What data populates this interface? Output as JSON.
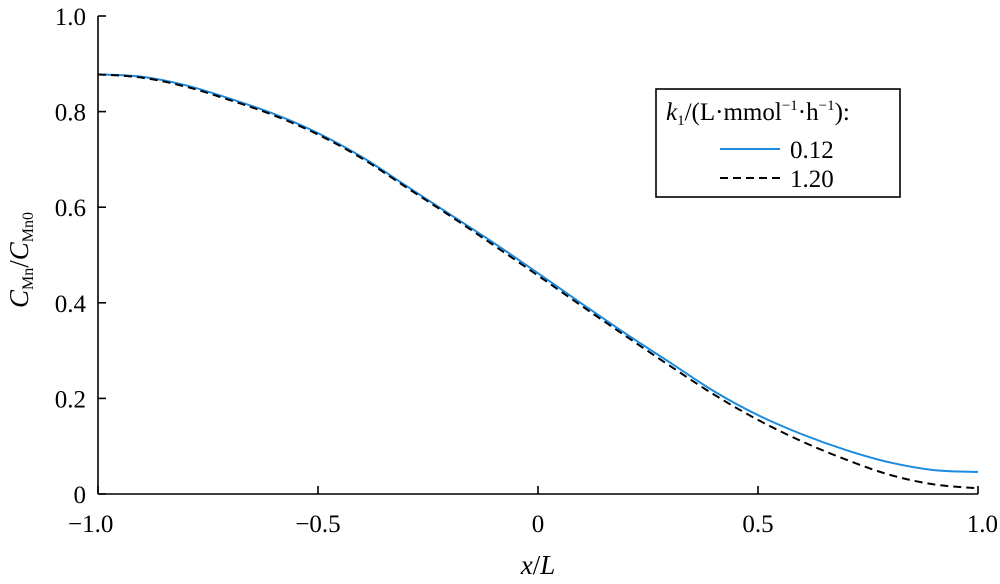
{
  "chart_data": {
    "type": "line",
    "xlabel": {
      "var": "x",
      "sep": "/",
      "ref": "L"
    },
    "ylabel": {
      "num": "C",
      "num_sub": "Mn",
      "sep": "/",
      "den": "C",
      "den_sub": "Mn0"
    },
    "xlim": [
      -1.0,
      1.0
    ],
    "ylim": [
      0,
      1.0
    ],
    "x_ticks": [
      -1.0,
      -0.5,
      0,
      0.5,
      1.0
    ],
    "x_tick_labels": [
      "−1.0",
      "−0.5",
      "0",
      "0.5",
      "1.0"
    ],
    "y_ticks": [
      0,
      0.2,
      0.4,
      0.6,
      0.8,
      1.0
    ],
    "y_tick_labels": [
      "0",
      "0.2",
      "0.4",
      "0.6",
      "0.8",
      "1.0"
    ],
    "grid": false,
    "legend": {
      "position": "top-right",
      "title": {
        "k": "k",
        "sub": "1",
        "rest": "/(L·mmol",
        "sup1": "−1",
        "mid": "·h",
        "sup2": "−1",
        "end": "):"
      }
    },
    "series": [
      {
        "name": "0.12",
        "color": "#1a8be0",
        "style": "solid",
        "x": [
          -1.0,
          -0.9,
          -0.8,
          -0.7,
          -0.6,
          -0.5,
          -0.4,
          -0.3,
          -0.2,
          -0.1,
          0.0,
          0.1,
          0.2,
          0.3,
          0.4,
          0.5,
          0.6,
          0.7,
          0.8,
          0.9,
          1.0
        ],
        "y": [
          0.878,
          0.873,
          0.855,
          0.827,
          0.795,
          0.755,
          0.705,
          0.645,
          0.585,
          0.525,
          0.462,
          0.398,
          0.335,
          0.275,
          0.215,
          0.165,
          0.125,
          0.092,
          0.066,
          0.05,
          0.046
        ]
      },
      {
        "name": "1.20",
        "color": "#000000",
        "style": "dashed",
        "x": [
          -1.0,
          -0.9,
          -0.8,
          -0.7,
          -0.6,
          -0.5,
          -0.4,
          -0.3,
          -0.2,
          -0.1,
          0.0,
          0.1,
          0.2,
          0.3,
          0.4,
          0.5,
          0.6,
          0.7,
          0.8,
          0.9,
          1.0
        ],
        "y": [
          0.878,
          0.871,
          0.852,
          0.824,
          0.792,
          0.752,
          0.702,
          0.642,
          0.582,
          0.52,
          0.457,
          0.393,
          0.33,
          0.268,
          0.208,
          0.155,
          0.11,
          0.072,
          0.04,
          0.02,
          0.012
        ]
      }
    ]
  }
}
